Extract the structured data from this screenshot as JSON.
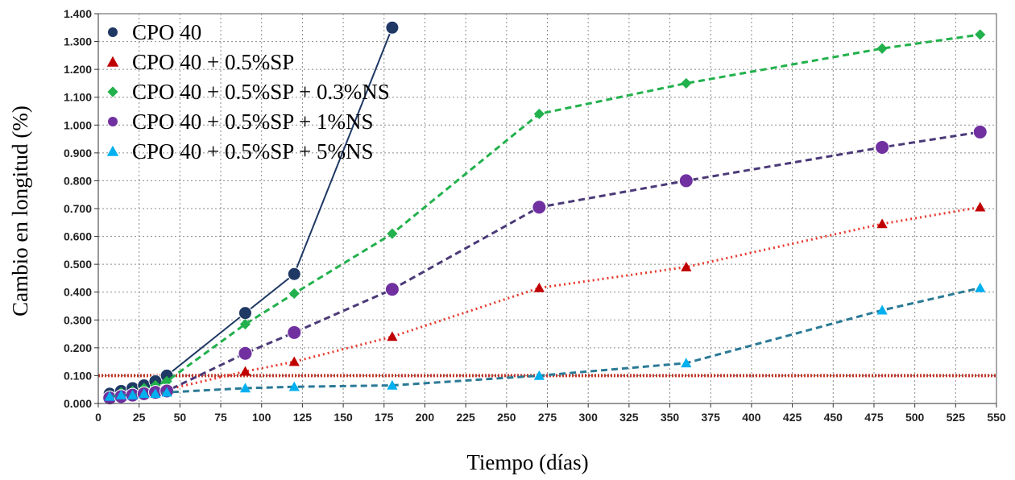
{
  "chart_data": {
    "type": "line",
    "xlabel": "Tiempo (días)",
    "ylabel": "Cambio en longitud (%)",
    "xlim": [
      0,
      550
    ],
    "ylim": [
      0,
      1.4
    ],
    "xticks": [
      0,
      25,
      50,
      75,
      100,
      125,
      150,
      175,
      200,
      225,
      250,
      275,
      300,
      325,
      350,
      375,
      400,
      425,
      450,
      475,
      500,
      525,
      550
    ],
    "xtick_labels": [
      "0",
      "25",
      "50",
      "75",
      "100",
      "125",
      "150",
      "175",
      "200",
      "225",
      "250",
      "275",
      "300",
      "325",
      "350",
      "375",
      "400",
      "425",
      "450",
      "475",
      "500",
      "525",
      "550"
    ],
    "yticks": [
      0,
      0.1,
      0.2,
      0.3,
      0.4,
      0.5,
      0.6,
      0.7,
      0.8,
      0.9,
      1.0,
      1.1,
      1.2,
      1.3,
      1.4
    ],
    "ytick_labels": [
      "0.000",
      "0.100",
      "0.200",
      "0.300",
      "0.400",
      "0.500",
      "0.600",
      "0.700",
      "0.800",
      "0.900",
      "1.000",
      "1.100",
      "1.200",
      "1.300",
      "1.400"
    ],
    "grid": true,
    "legend_position": "top-left",
    "reference_line": {
      "y": 0.1,
      "color": "#c0392b"
    },
    "series": [
      {
        "name": "CPO 40",
        "marker": "circle",
        "line_style": "solid",
        "color": "#1f3864",
        "x": [
          7,
          14,
          21,
          28,
          35,
          42,
          90,
          120,
          180
        ],
        "y": [
          0.035,
          0.045,
          0.055,
          0.065,
          0.08,
          0.1,
          0.325,
          0.465,
          1.35
        ]
      },
      {
        "name": "CPO 40 + 0.5%SP",
        "marker": "triangle",
        "line_style": "dotted",
        "color": "#c00000",
        "line_color": "#e8392e",
        "x": [
          7,
          14,
          21,
          28,
          35,
          42,
          90,
          120,
          180,
          270,
          360,
          480,
          540
        ],
        "y": [
          0.03,
          0.035,
          0.04,
          0.04,
          0.045,
          0.05,
          0.115,
          0.15,
          0.24,
          0.415,
          0.49,
          0.645,
          0.705
        ]
      },
      {
        "name": "CPO 40 + 0.5%SP + 0.3%NS",
        "marker": "diamond",
        "line_style": "dashed",
        "color": "#22b14c",
        "x": [
          7,
          14,
          21,
          28,
          35,
          42,
          90,
          120,
          180,
          270,
          360,
          480,
          540
        ],
        "y": [
          0.03,
          0.04,
          0.045,
          0.055,
          0.065,
          0.08,
          0.285,
          0.395,
          0.61,
          1.04,
          1.15,
          1.275,
          1.325
        ]
      },
      {
        "name": "CPO 40 + 0.5%SP + 1%NS",
        "marker": "circle",
        "line_style": "dashed",
        "color": "#7030a0",
        "line_color": "#4b3a78",
        "x": [
          7,
          14,
          21,
          28,
          35,
          42,
          90,
          120,
          180,
          270,
          360,
          480,
          540
        ],
        "y": [
          0.02,
          0.025,
          0.03,
          0.035,
          0.04,
          0.045,
          0.18,
          0.255,
          0.41,
          0.705,
          0.8,
          0.92,
          0.975
        ]
      },
      {
        "name": "CPO 40 + 0.5%SP + 5%NS",
        "marker": "triangle",
        "line_style": "dashed",
        "color": "#00b0f0",
        "line_color": "#2a7a96",
        "x": [
          7,
          14,
          21,
          28,
          35,
          42,
          90,
          120,
          180,
          270,
          360,
          480,
          540
        ],
        "y": [
          0.025,
          0.03,
          0.03,
          0.035,
          0.035,
          0.04,
          0.055,
          0.06,
          0.065,
          0.1,
          0.145,
          0.335,
          0.415
        ]
      }
    ]
  }
}
